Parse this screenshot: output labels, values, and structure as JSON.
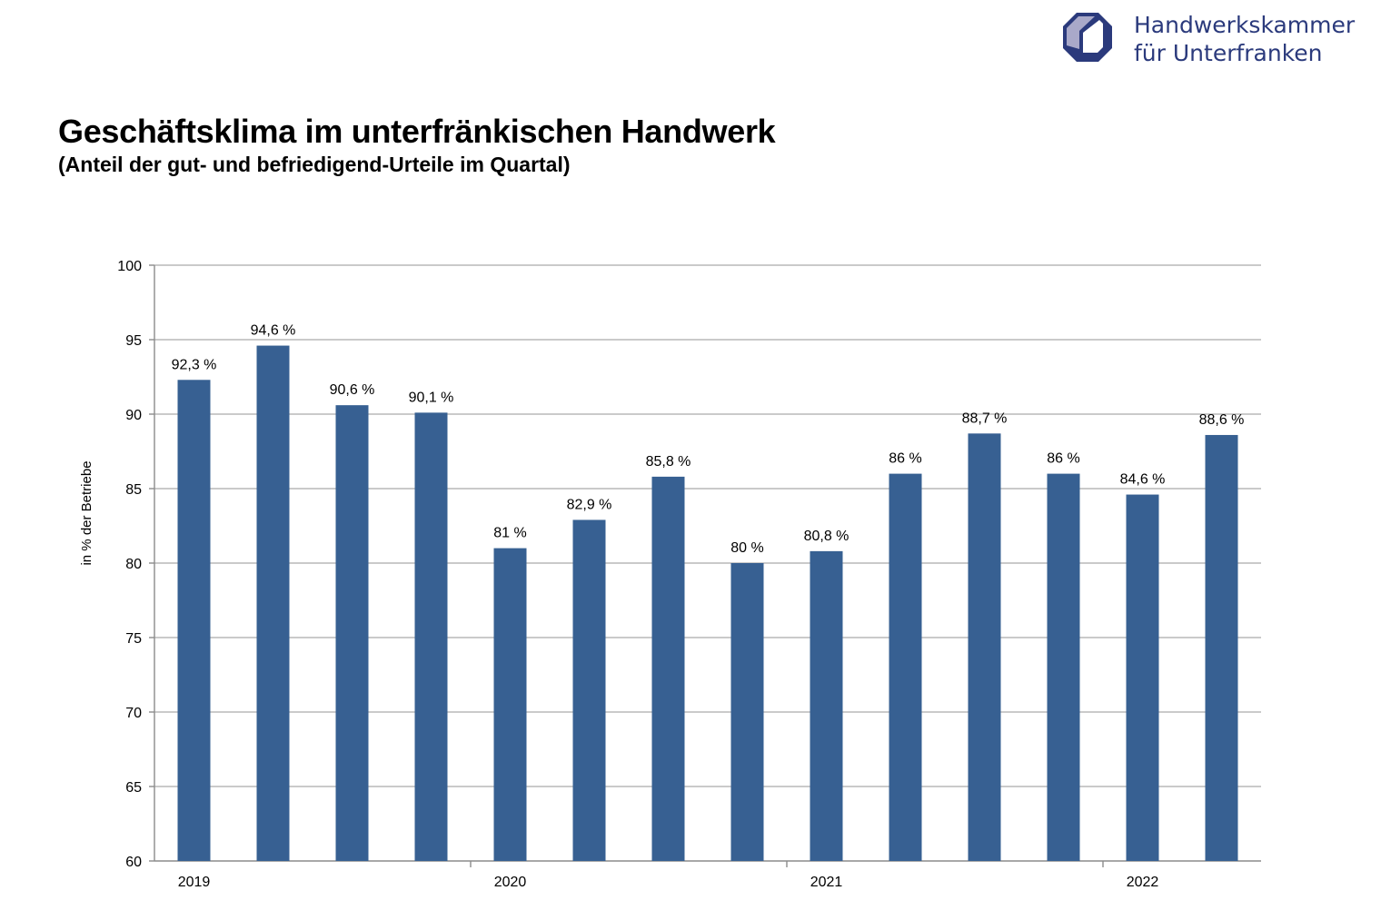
{
  "logo": {
    "line1": "Handwerkskammer",
    "line2": "für Unterfranken",
    "icon": "hwk-logo-icon",
    "color": "#2b3a7c"
  },
  "title": "Geschäftsklima im unterfränkischen Handwerk",
  "subtitle": "(Anteil der gut- und befriedigend-Urteile im Quartal)",
  "chart_data": {
    "type": "bar",
    "ylabel": "in % der Betriebe",
    "ylim": [
      60,
      100
    ],
    "yticks": [
      60,
      65,
      70,
      75,
      80,
      85,
      90,
      95,
      100
    ],
    "grid": true,
    "bar_color": "#376092",
    "year_labels": [
      {
        "label": "2019",
        "start_index": 0
      },
      {
        "label": "2020",
        "start_index": 4
      },
      {
        "label": "2021",
        "start_index": 8
      },
      {
        "label": "2022",
        "start_index": 12
      }
    ],
    "values": [
      92.3,
      94.6,
      90.6,
      90.1,
      81,
      82.9,
      85.8,
      80,
      80.8,
      86,
      88.7,
      86,
      84.6,
      88.6
    ],
    "data_labels": [
      "92,3 %",
      "94,6 %",
      "90,6 %",
      "90,1 %",
      "81 %",
      "82,9 %",
      "85,8 %",
      "80 %",
      "80,8 %",
      "86 %",
      "88,7 %",
      "86 %",
      "84,6 %",
      "88,6 %"
    ]
  }
}
